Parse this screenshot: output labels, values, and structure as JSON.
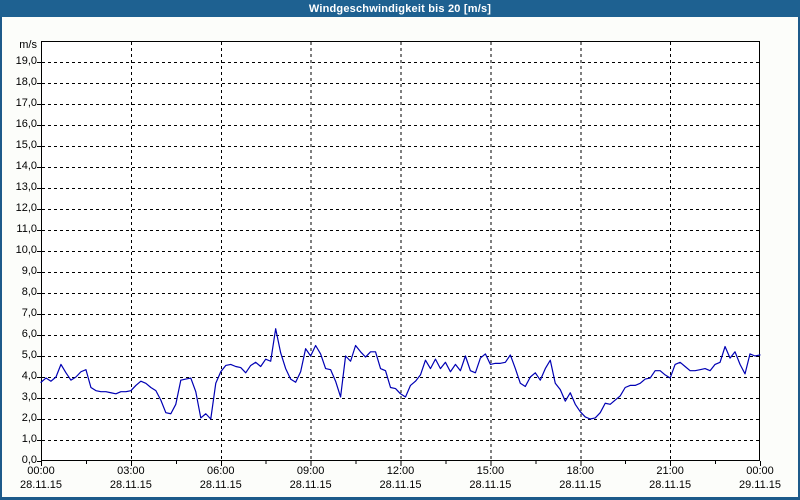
{
  "window": {
    "title": "Windgeschwindigkeit bis 20 [m/s]"
  },
  "colors": {
    "outer_border": "#1d5a8a",
    "titlebar_bg": "#1e6191",
    "titlebar_text": "#ffffff",
    "content_bg": "#fcfdfa",
    "plot_bg": "#ffffff",
    "grid": "#000000",
    "axis": "#000000",
    "line": "#0000b4",
    "label_text": "#000000"
  },
  "chart_data": {
    "type": "line",
    "title": "Windgeschwindigkeit bis 20 [m/s]",
    "unit_label": "m/s",
    "grid": true,
    "ylim": [
      0,
      20
    ],
    "y_tick_step": 1,
    "y_tick_labels": [
      "0,0",
      "1,0",
      "2,0",
      "3,0",
      "4,0",
      "5,0",
      "6,0",
      "7,0",
      "8,0",
      "9,0",
      "10,0",
      "11,0",
      "12,0",
      "13,0",
      "14,0",
      "15,0",
      "16,0",
      "17,0",
      "18,0",
      "19,0"
    ],
    "x_range_hours": [
      0,
      24
    ],
    "x_major_ticks": [
      {
        "hour": 0,
        "time": "00:00",
        "date": "28.11.15"
      },
      {
        "hour": 3,
        "time": "03:00",
        "date": "28.11.15"
      },
      {
        "hour": 6,
        "time": "06:00",
        "date": "28.11.15"
      },
      {
        "hour": 9,
        "time": "09:00",
        "date": "28.11.15"
      },
      {
        "hour": 12,
        "time": "12:00",
        "date": "28.11.15"
      },
      {
        "hour": 15,
        "time": "15:00",
        "date": "28.11.15"
      },
      {
        "hour": 18,
        "time": "18:00",
        "date": "28.11.15"
      },
      {
        "hour": 21,
        "time": "21:00",
        "date": "28.11.15"
      },
      {
        "hour": 24,
        "time": "00:00",
        "date": "29.11.15"
      }
    ],
    "x_minor_tick_hours": [
      1.5,
      4.5,
      7.5,
      10.5,
      13.5,
      16.5,
      19.5,
      22.5
    ],
    "series": [
      {
        "name": "Windgeschwindigkeit",
        "start_hour": 0,
        "interval_minutes": 10,
        "values": [
          3.75,
          3.95,
          3.8,
          4.0,
          4.6,
          4.2,
          3.85,
          4.0,
          4.25,
          4.35,
          3.5,
          3.35,
          3.3,
          3.3,
          3.25,
          3.2,
          3.3,
          3.3,
          3.35,
          3.6,
          3.8,
          3.7,
          3.5,
          3.35,
          2.9,
          2.3,
          2.25,
          2.7,
          3.85,
          3.9,
          3.95,
          3.3,
          2.05,
          2.25,
          2.0,
          3.7,
          4.25,
          4.55,
          4.6,
          4.5,
          4.45,
          4.2,
          4.55,
          4.7,
          4.5,
          4.85,
          4.75,
          6.3,
          5.15,
          4.4,
          3.9,
          3.75,
          4.25,
          5.35,
          5.0,
          5.5,
          5.1,
          4.4,
          4.35,
          3.8,
          3.05,
          5.0,
          4.75,
          5.5,
          5.2,
          4.95,
          5.2,
          5.2,
          4.4,
          4.3,
          3.5,
          3.45,
          3.2,
          3.05,
          3.6,
          3.8,
          4.1,
          4.8,
          4.4,
          4.85,
          4.4,
          4.7,
          4.25,
          4.6,
          4.3,
          5.0,
          4.3,
          4.2,
          4.9,
          5.1,
          4.6,
          4.65,
          4.65,
          4.7,
          5.05,
          4.4,
          3.7,
          3.55,
          4.0,
          4.2,
          3.85,
          4.4,
          4.8,
          3.7,
          3.4,
          2.85,
          3.25,
          2.7,
          2.35,
          2.1,
          2.0,
          2.05,
          2.3,
          2.75,
          2.7,
          2.9,
          3.1,
          3.5,
          3.6,
          3.6,
          3.7,
          3.9,
          3.95,
          4.3,
          4.3,
          4.1,
          3.95,
          4.6,
          4.7,
          4.5,
          4.3,
          4.3,
          4.35,
          4.4,
          4.3,
          4.6,
          4.7,
          5.45,
          4.9,
          5.2,
          4.6,
          4.15,
          5.1,
          5.0,
          5.05
        ]
      }
    ]
  }
}
